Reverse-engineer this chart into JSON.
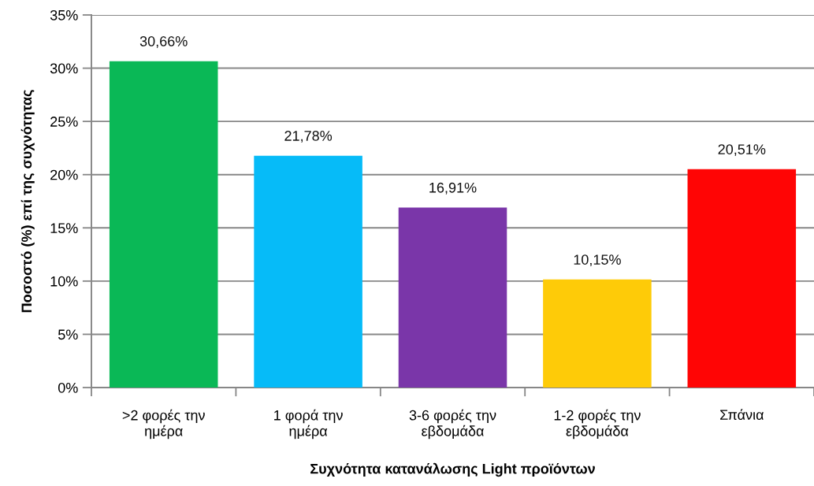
{
  "chart_data": {
    "type": "bar",
    "xlabel": "Συχνότητα κατανάλωσης Light προϊόντων",
    "ylabel": "Ποσοστό (%) επί της συχνότητας",
    "categories": [
      ">2 φορές την\nημέρα",
      "1 φορά την\nημέρα",
      "3-6 φορές την\nεβδομάδα",
      "1-2 φορές την\nεβδομάδα",
      "Σπάνια"
    ],
    "values": [
      30.66,
      21.78,
      16.91,
      10.15,
      20.51
    ],
    "colors": [
      "#0ab856",
      "#06bbf8",
      "#7a36a9",
      "#fecb08",
      "#ff0505"
    ],
    "value_labels": [
      "30,66%",
      "21,78%",
      "16,91%",
      "10,15%",
      "20,51%"
    ],
    "ylim": [
      0,
      35
    ],
    "yticks": [
      {
        "value": 0,
        "label": "0%"
      },
      {
        "value": 5,
        "label": "5%"
      },
      {
        "value": 10,
        "label": "10%"
      },
      {
        "value": 15,
        "label": "15%"
      },
      {
        "value": 20,
        "label": "20%"
      },
      {
        "value": 25,
        "label": "25%"
      },
      {
        "value": 30,
        "label": "30%"
      },
      {
        "value": 35,
        "label": "35%"
      }
    ],
    "grid": "y"
  }
}
